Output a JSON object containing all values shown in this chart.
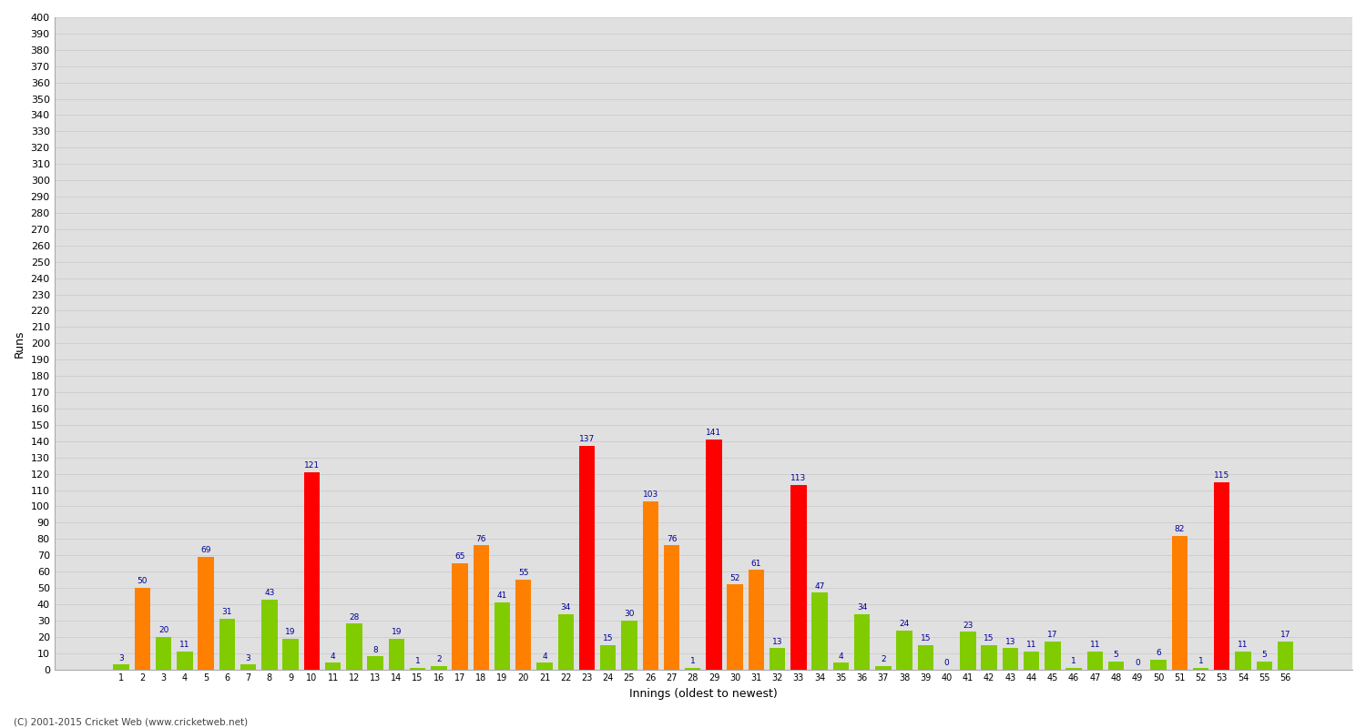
{
  "xlabel": "Innings (oldest to newest)",
  "ylabel": "Runs",
  "ylim": [
    0,
    400
  ],
  "background_color": "#ffffff",
  "grid_color": "#cccccc",
  "footer": "(C) 2001-2015 Cricket Web (www.cricketweb.net)",
  "innings": [
    1,
    2,
    3,
    4,
    5,
    6,
    7,
    8,
    9,
    10,
    11,
    12,
    13,
    14,
    15,
    16,
    17,
    18,
    19,
    20,
    21,
    22,
    23,
    24,
    25,
    26,
    27,
    28,
    29,
    30,
    31,
    32,
    33,
    34,
    35,
    36,
    37,
    38,
    39,
    40,
    41,
    42,
    43,
    44,
    45,
    46,
    47,
    48,
    49,
    50,
    51,
    52,
    53,
    54,
    55,
    56
  ],
  "scores": [
    3,
    50,
    20,
    11,
    69,
    31,
    3,
    43,
    19,
    121,
    4,
    28,
    8,
    19,
    1,
    2,
    65,
    76,
    41,
    55,
    4,
    34,
    137,
    15,
    30,
    103,
    76,
    1,
    141,
    52,
    61,
    13,
    113,
    47,
    4,
    34,
    2,
    24,
    15,
    0,
    23,
    15,
    13,
    11,
    17,
    1,
    11,
    5,
    0,
    6,
    82,
    1,
    115,
    11,
    5,
    17
  ],
  "colors": [
    "#80cc00",
    "#ff8000",
    "#80cc00",
    "#80cc00",
    "#ff8000",
    "#80cc00",
    "#80cc00",
    "#80cc00",
    "#80cc00",
    "#ff0000",
    "#80cc00",
    "#80cc00",
    "#80cc00",
    "#80cc00",
    "#80cc00",
    "#80cc00",
    "#ff8000",
    "#ff8000",
    "#80cc00",
    "#ff8000",
    "#80cc00",
    "#80cc00",
    "#ff0000",
    "#80cc00",
    "#80cc00",
    "#ff8000",
    "#ff8000",
    "#80cc00",
    "#ff0000",
    "#ff8000",
    "#ff8000",
    "#80cc00",
    "#ff0000",
    "#80cc00",
    "#80cc00",
    "#80cc00",
    "#80cc00",
    "#80cc00",
    "#80cc00",
    "#80cc00",
    "#80cc00",
    "#80cc00",
    "#80cc00",
    "#80cc00",
    "#80cc00",
    "#80cc00",
    "#80cc00",
    "#80cc00",
    "#80cc00",
    "#80cc00",
    "#ff8000",
    "#80cc00",
    "#ff0000",
    "#80cc00",
    "#80cc00",
    "#80cc00"
  ]
}
